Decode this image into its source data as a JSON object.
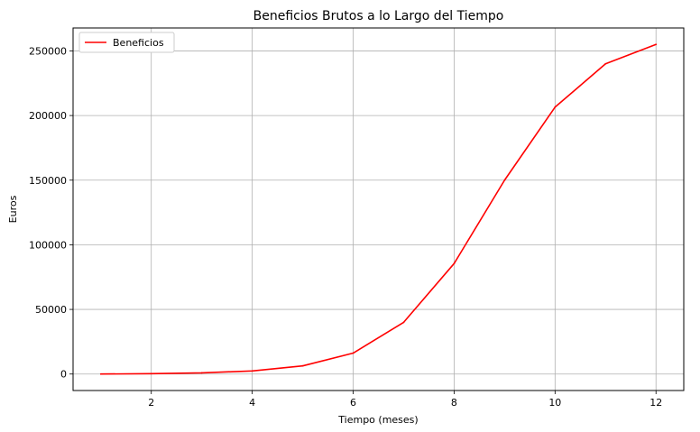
{
  "chart_data": {
    "type": "line",
    "title": "Beneficios Brutos a lo Largo del Tiempo",
    "xlabel": "Tiempo (meses)",
    "ylabel": "Euros",
    "x": [
      1,
      2,
      3,
      4,
      5,
      6,
      7,
      8,
      9,
      10,
      11,
      12
    ],
    "series": [
      {
        "name": "Beneficios",
        "color": "#ff0000",
        "values": [
          0,
          300,
          900,
          2400,
          6300,
          16200,
          40000,
          85500,
          150000,
          206500,
          240000,
          255000
        ]
      }
    ],
    "xlim": [
      0.45,
      12.55
    ],
    "ylim": [
      -12750,
      267750
    ],
    "xticks": [
      2,
      4,
      6,
      8,
      10,
      12
    ],
    "yticks": [
      0,
      50000,
      100000,
      150000,
      200000,
      250000
    ],
    "grid": true,
    "legend_position": "top-left"
  }
}
